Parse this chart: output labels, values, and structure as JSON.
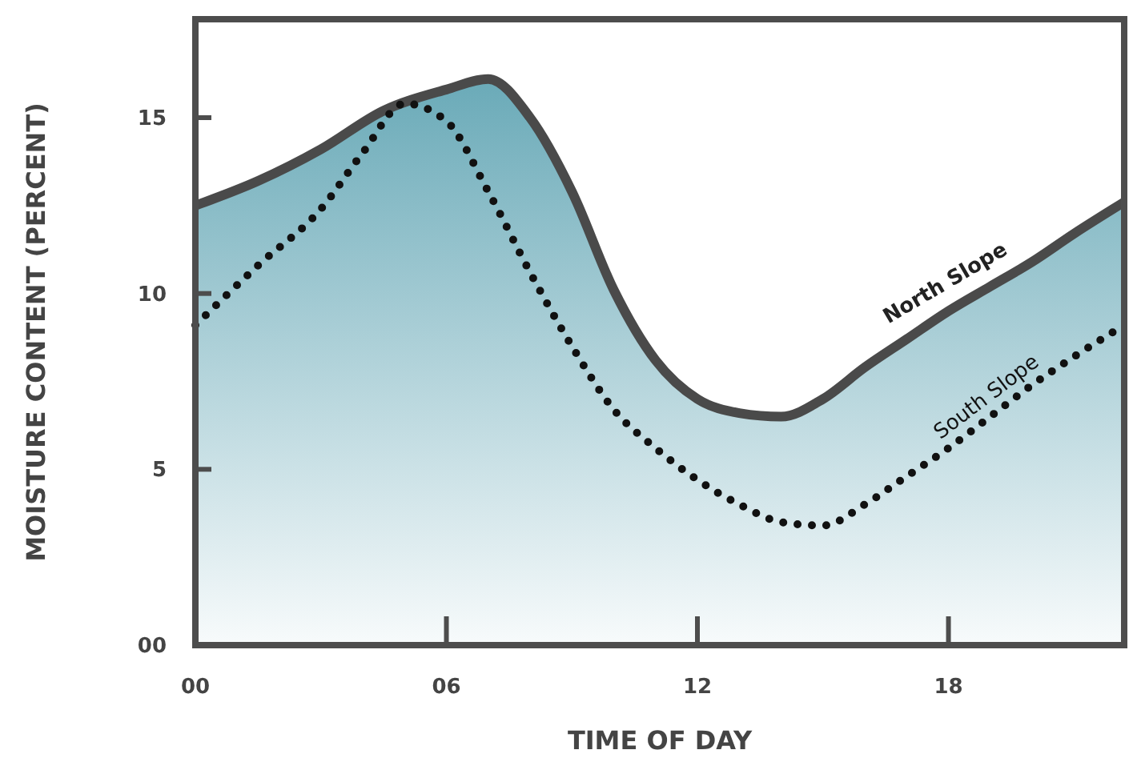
{
  "chart_data": {
    "type": "line",
    "xlabel": "TIME OF DAY",
    "ylabel": "MOISTURE CONTENT (PERCENT)",
    "xlim": [
      0,
      22.2
    ],
    "ylim": [
      0,
      17.8
    ],
    "xticks": [
      {
        "value": 0,
        "label": "00"
      },
      {
        "value": 6,
        "label": "06"
      },
      12,
      18
    ],
    "yticks": [
      {
        "value": 0,
        "label": "00"
      },
      5,
      10,
      15
    ],
    "grid": false,
    "series": [
      {
        "name": "North Slope",
        "type": "area",
        "color": "#6aaab8",
        "line_style": "solid",
        "x": [
          0,
          1.5,
          3,
          4.5,
          6,
          7,
          8,
          9,
          10,
          11,
          12,
          13,
          14,
          15,
          16,
          17,
          18,
          19,
          20,
          21,
          22.2
        ],
        "values": [
          12.5,
          13.2,
          14.1,
          15.2,
          15.8,
          16.1,
          15.0,
          12.9,
          10.1,
          8.1,
          7.0,
          6.6,
          6.5,
          7.0,
          7.9,
          8.7,
          9.5,
          10.2,
          10.9,
          11.7,
          12.6
        ]
      },
      {
        "name": "South Slope",
        "color": "#111111",
        "line_style": "dotted",
        "x": [
          0,
          1.5,
          3,
          4,
          5,
          6,
          7,
          8,
          9,
          10,
          11,
          12,
          13,
          14,
          15,
          16,
          17,
          18,
          19,
          20,
          21,
          22.2
        ],
        "values": [
          9.1,
          10.8,
          12.4,
          14.0,
          15.4,
          14.9,
          12.9,
          10.6,
          8.5,
          6.7,
          5.6,
          4.7,
          4.0,
          3.5,
          3.4,
          4.0,
          4.8,
          5.6,
          6.5,
          7.4,
          8.2,
          9.1
        ]
      }
    ]
  }
}
